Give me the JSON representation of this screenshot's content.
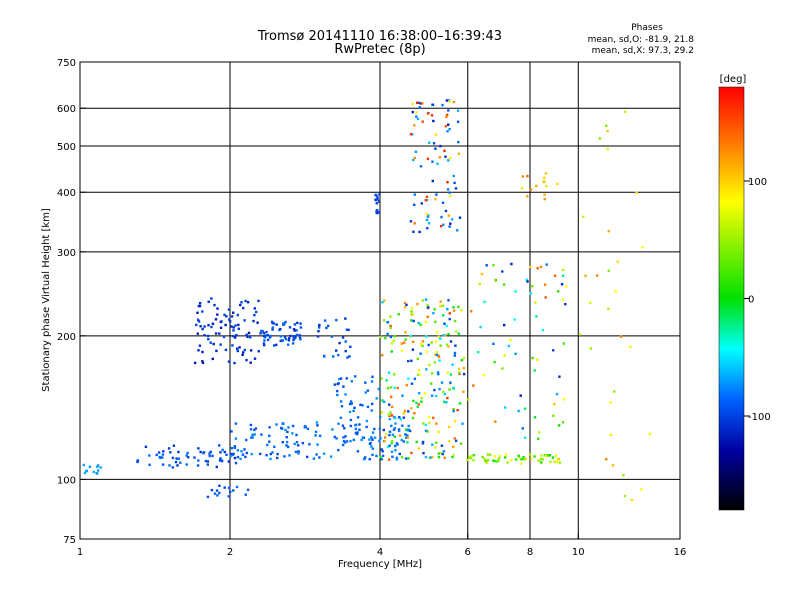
{
  "chart_data": {
    "type": "scatter",
    "title": "Tromsø 20141110 16:38:00–16:39:43",
    "subtitle": "RwPretec (8p)",
    "xlabel": "Frequency [MHz]",
    "ylabel": "Stationary phase Virtual Height [km]",
    "x_scale": "log",
    "y_scale": "log",
    "xlim": [
      1,
      16
    ],
    "ylim": [
      75,
      750
    ],
    "x_ticks": [
      1,
      2,
      4,
      6,
      8,
      10,
      16
    ],
    "y_ticks": [
      75,
      100,
      200,
      300,
      400,
      500,
      600,
      750
    ],
    "grid": true,
    "annotation": {
      "heading": "Phases",
      "line1": "mean, sd,O: -81.9, 21.8",
      "line2": "mean, sd,X:  97.3, 29.2"
    },
    "colorbar": {
      "label": "[deg]",
      "min": -180,
      "max": 180,
      "ticks": [
        100,
        0,
        -100
      ],
      "colors": [
        "#ff0000",
        "#ff8000",
        "#ffff00",
        "#00e000",
        "#00ffff",
        "#0060ff",
        "#0000a0",
        "#000000"
      ]
    },
    "clusters": [
      {
        "f": [
          1.0,
          1.1
        ],
        "h": [
          102,
          108
        ],
        "phase": [
          -75,
          -60
        ],
        "n": 12
      },
      {
        "f": [
          1.3,
          2.1
        ],
        "h": [
          106,
          118
        ],
        "phase": [
          -110,
          -80
        ],
        "n": 60
      },
      {
        "f": [
          2.0,
          4.6
        ],
        "h": [
          110,
          132
        ],
        "phase": [
          -100,
          -70
        ],
        "n": 160
      },
      {
        "f": [
          1.8,
          2.2
        ],
        "h": [
          92,
          98
        ],
        "phase": [
          -100,
          -80
        ],
        "n": 15
      },
      {
        "f": [
          1.7,
          2.3
        ],
        "h": [
          175,
          240
        ],
        "phase": [
          -120,
          -95
        ],
        "n": 90
      },
      {
        "f": [
          2.3,
          2.8
        ],
        "h": [
          190,
          215
        ],
        "phase": [
          -110,
          -80
        ],
        "n": 60
      },
      {
        "f": [
          3.0,
          3.5
        ],
        "h": [
          180,
          220
        ],
        "phase": [
          -110,
          -80
        ],
        "n": 25
      },
      {
        "f": [
          3.2,
          4.0
        ],
        "h": [
          130,
          165
        ],
        "phase": [
          -100,
          -70
        ],
        "n": 40
      },
      {
        "f": [
          4.0,
          5.9
        ],
        "h": [
          110,
          240
        ],
        "phase": [
          -20,
          160
        ],
        "n": 160
      },
      {
        "f": [
          4.0,
          5.9
        ],
        "h": [
          110,
          240
        ],
        "phase": [
          -110,
          -40
        ],
        "n": 80
      },
      {
        "f": [
          4.6,
          5.8
        ],
        "h": [
          330,
          630
        ],
        "phase": [
          -120,
          -60
        ],
        "n": 60
      },
      {
        "f": [
          4.6,
          5.8
        ],
        "h": [
          330,
          630
        ],
        "phase": [
          80,
          170
        ],
        "n": 30
      },
      {
        "f": [
          5.8,
          9.2
        ],
        "h": [
          108,
          113
        ],
        "phase": [
          0,
          100
        ],
        "n": 60
      },
      {
        "f": [
          6.0,
          9.5
        ],
        "h": [
          120,
          290
        ],
        "phase": [
          -120,
          150
        ],
        "n": 70
      },
      {
        "f": [
          7.5,
          9.2
        ],
        "h": [
          385,
          440
        ],
        "phase": [
          60,
          140
        ],
        "n": 14
      },
      {
        "f": [
          10.0,
          14.0
        ],
        "h": [
          90,
          600
        ],
        "phase": [
          40,
          130
        ],
        "n": 30
      },
      {
        "f": [
          3.9,
          4.0
        ],
        "h": [
          360,
          400
        ],
        "phase": [
          -110,
          -90
        ],
        "n": 14
      }
    ]
  }
}
